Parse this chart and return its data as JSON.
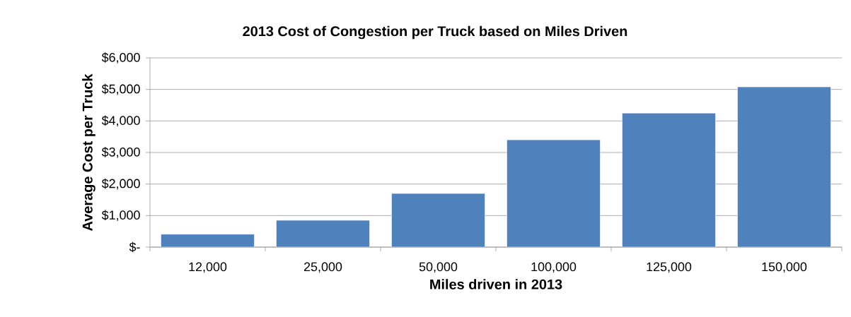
{
  "chart_data": {
    "type": "bar",
    "title": "2013 Cost of Congestion per Truck based on Miles Driven",
    "xlabel": "Miles driven in 2013",
    "ylabel": "Average Cost per Truck",
    "categories": [
      "12,000",
      "25,000",
      "50,000",
      "100,000",
      "125,000",
      "150,000"
    ],
    "values": [
      410,
      850,
      1700,
      3400,
      4250,
      5080
    ],
    "color": "#4f81bd",
    "ylim": [
      0,
      6000
    ],
    "yticks": [
      {
        "value": 0,
        "label": "$-"
      },
      {
        "value": 1000,
        "label": "$1,000"
      },
      {
        "value": 2000,
        "label": "$2,000"
      },
      {
        "value": 3000,
        "label": "$3,000"
      },
      {
        "value": 4000,
        "label": "$4,000"
      },
      {
        "value": 5000,
        "label": "$5,000"
      },
      {
        "value": 6000,
        "label": "$6,000"
      }
    ],
    "grid": "y"
  }
}
